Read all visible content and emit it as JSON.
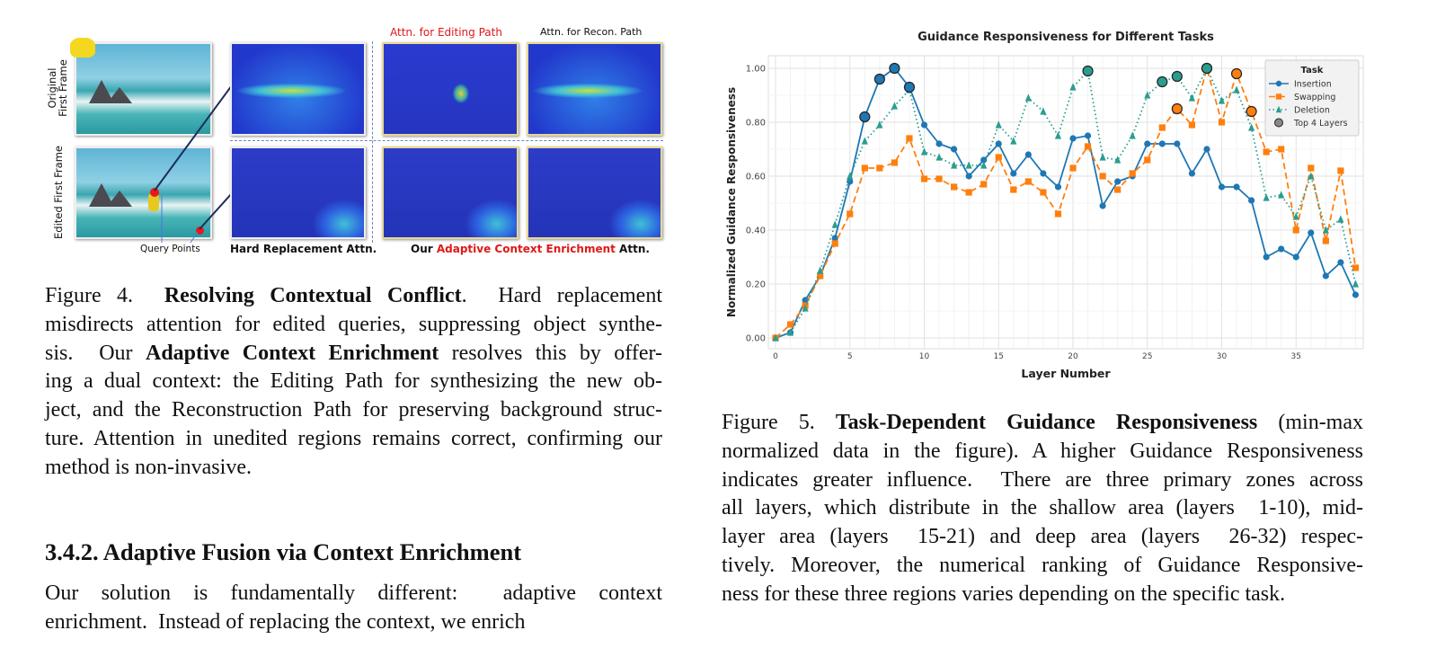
{
  "figure4": {
    "labels": {
      "original": [
        "Original",
        "First Frame"
      ],
      "edited": "Edited First Frame",
      "editing_path": "Attn. for Editing Path",
      "recon_path": "Attn. for Recon. Path",
      "query_points": "Query Points",
      "hard_replacement": "Hard Replacement Attn.",
      "ours_prefix": "Our ",
      "ours_highlight": "Adaptive Context Enrichment",
      "ours_suffix": " Attn."
    },
    "caption_lines": [
      [
        {
          "t": "Figure 4.  "
        },
        {
          "t": "Resolving Contextual Conflict",
          "b": true
        },
        {
          "t": ".  Hard replacement"
        }
      ],
      [
        {
          "t": "misdirects attention for edited queries, suppressing object synthe-"
        }
      ],
      [
        {
          "t": "sis.  Our "
        },
        {
          "t": "Adaptive Context Enrichment",
          "b": true
        },
        {
          "t": " resolves this by offer-"
        }
      ],
      [
        {
          "t": "ing a dual context: the Editing Path for synthesizing the new ob-"
        }
      ],
      [
        {
          "t": "ject, and the Reconstruction Path for preserving background struc-"
        }
      ],
      [
        {
          "t": "ture. Attention in unedited regions remains correct, confirming our"
        }
      ],
      [
        {
          "t": "method is non-invasive."
        }
      ]
    ]
  },
  "section": {
    "heading": "3.4.2. Adaptive Fusion via Context Enrichment",
    "body_lines": [
      [
        {
          "t": "Our solution is fundamentally different:  adaptive context"
        }
      ],
      [
        {
          "t": "enrichment.  Instead of replacing the context, we enrich"
        }
      ]
    ]
  },
  "figure5": {
    "caption_lines": [
      [
        {
          "t": "Figure 5. "
        },
        {
          "t": "Task-Dependent Guidance Responsiveness",
          "b": true
        },
        {
          "t": " (min-max"
        }
      ],
      [
        {
          "t": "normalized data in the figure). A higher Guidance Responsiveness"
        }
      ],
      [
        {
          "t": "indicates greater influence.  There are three primary zones across"
        }
      ],
      [
        {
          "t": "all layers, which distribute in the shallow area (layers  1-10), mid-"
        }
      ],
      [
        {
          "t": "layer area (layers  15-21) and deep area (layers  26-32) respec-"
        }
      ],
      [
        {
          "t": "tively. Moreover, the numerical ranking of Guidance Responsive-"
        }
      ],
      [
        {
          "t": "ness for these three regions varies depending on the specific task."
        }
      ]
    ]
  },
  "chart_data": {
    "type": "line",
    "title": "Guidance Responsiveness for Different Tasks",
    "xlabel": "Layer Number",
    "ylabel": "Normalized Guidance Responsiveness",
    "xlim": [
      0,
      39
    ],
    "ylim": [
      0,
      1
    ],
    "xticks": [
      0,
      5,
      10,
      15,
      20,
      25,
      30,
      35
    ],
    "yticks": [
      "0.00",
      "0.20",
      "0.40",
      "0.60",
      "0.80",
      "1.00"
    ],
    "grid": true,
    "legend": {
      "title": "Task",
      "placement": "top-right",
      "top_label": "Top 4 Layers"
    },
    "x": [
      0,
      1,
      2,
      3,
      4,
      5,
      6,
      7,
      8,
      9,
      10,
      11,
      12,
      13,
      14,
      15,
      16,
      17,
      18,
      19,
      20,
      21,
      22,
      23,
      24,
      25,
      26,
      27,
      28,
      29,
      30,
      31,
      32,
      33,
      34,
      35,
      36,
      37,
      38,
      39
    ],
    "series": [
      {
        "name": "Insertion",
        "color": "#1f77b4",
        "marker": "circle",
        "dash": "solid",
        "values": [
          0,
          0.02,
          0.14,
          0.23,
          0.37,
          0.58,
          0.82,
          0.96,
          1.0,
          0.93,
          0.79,
          0.72,
          0.7,
          0.6,
          0.66,
          0.72,
          0.61,
          0.68,
          0.61,
          0.56,
          0.74,
          0.75,
          0.49,
          0.58,
          0.6,
          0.72,
          0.72,
          0.72,
          0.61,
          0.7,
          0.56,
          0.56,
          0.51,
          0.3,
          0.33,
          0.3,
          0.39,
          0.23,
          0.28,
          0.16
        ],
        "top4": [
          6,
          7,
          8,
          9
        ]
      },
      {
        "name": "Swapping",
        "color": "#ff7f0e",
        "marker": "square",
        "dash": "dashed",
        "values": [
          0,
          0.05,
          0.12,
          0.23,
          0.35,
          0.46,
          0.63,
          0.63,
          0.65,
          0.74,
          0.59,
          0.59,
          0.56,
          0.54,
          0.57,
          0.67,
          0.55,
          0.58,
          0.54,
          0.46,
          0.63,
          0.71,
          0.6,
          0.55,
          0.61,
          0.66,
          0.78,
          0.85,
          0.79,
          1.0,
          0.8,
          0.98,
          0.84,
          0.69,
          0.7,
          0.4,
          0.63,
          0.36,
          0.62,
          0.26
        ],
        "top4": [
          27,
          29,
          31,
          32
        ]
      },
      {
        "name": "Deletion",
        "color": "#2a9d8f",
        "marker": "triangle",
        "dash": "dotted",
        "values": [
          0,
          0.02,
          0.11,
          0.25,
          0.42,
          0.6,
          0.73,
          0.79,
          0.86,
          0.92,
          0.69,
          0.67,
          0.64,
          0.64,
          0.64,
          0.79,
          0.73,
          0.89,
          0.84,
          0.75,
          0.93,
          0.99,
          0.67,
          0.66,
          0.75,
          0.9,
          0.95,
          0.97,
          0.89,
          1.0,
          0.88,
          0.92,
          0.78,
          0.52,
          0.53,
          0.45,
          0.6,
          0.4,
          0.44,
          0.2
        ],
        "top4": [
          21,
          26,
          27,
          29
        ]
      }
    ]
  }
}
